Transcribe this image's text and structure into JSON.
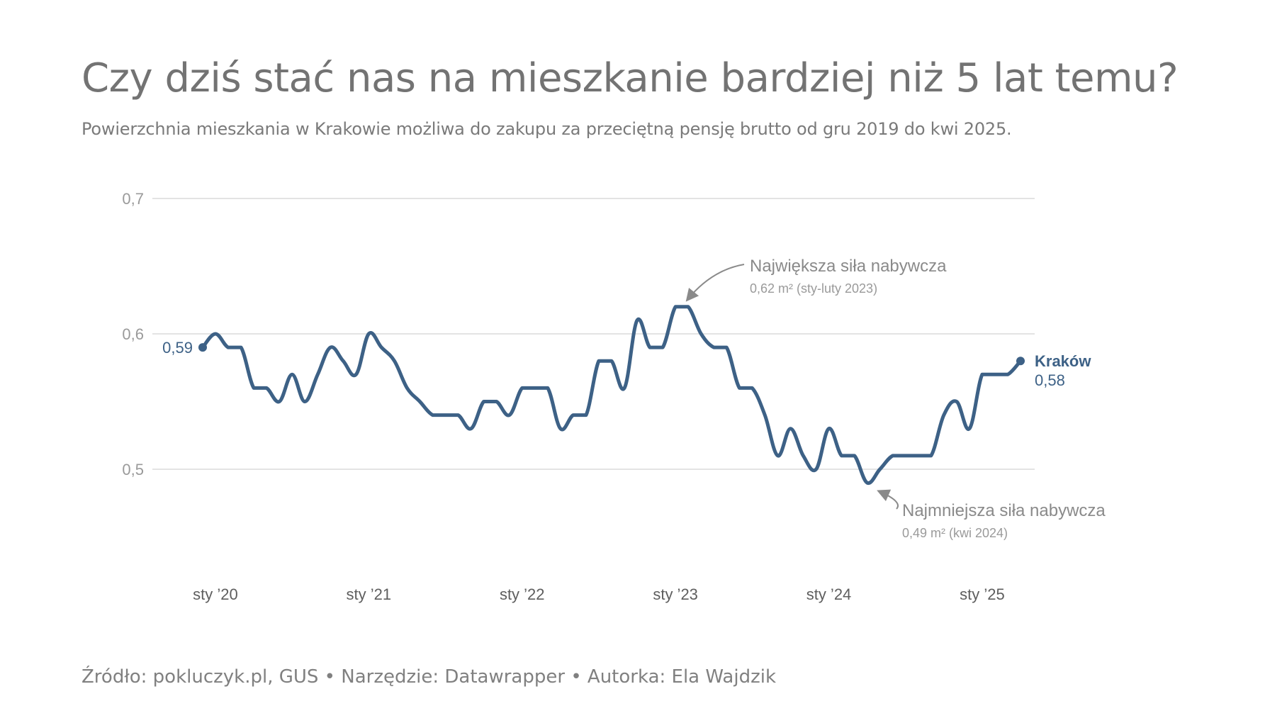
{
  "title": "Czy dziś stać nas na mieszkanie bardziej niż 5 lat temu?",
  "subtitle": "Powierzchnia mieszkania w Krakowie możliwa do zakupu za przeciętną pensję brutto od gru 2019 do kwi 2025.",
  "footer": "Źródło: pokluczyk.pl, GUS • Narzędzie: Datawrapper • Autorka: Ela Wajdzik",
  "colors": {
    "line": "#3d6186",
    "grid": "#e3e3e3",
    "annotation": "#8a8a8a"
  },
  "chart_data": {
    "type": "line",
    "title": "Czy dziś stać nas na mieszkanie bardziej niż 5 lat temu?",
    "xlabel": "",
    "ylabel": "",
    "ylim": [
      0.45,
      0.7
    ],
    "yticks": [
      0.5,
      0.6,
      0.7
    ],
    "ytick_labels": [
      "0,5",
      "0,6",
      "0,7"
    ],
    "xticks": [
      2020.0,
      2021.0,
      2022.0,
      2023.0,
      2024.0,
      2025.0
    ],
    "xtick_labels": [
      "sty ’20",
      "sty ’21",
      "sty ’22",
      "sty ’23",
      "sty ’24",
      "sty ’25"
    ],
    "grid": true,
    "series": [
      {
        "name": "Kraków",
        "x": [
          2019.917,
          2020.0,
          2020.083,
          2020.167,
          2020.25,
          2020.333,
          2020.417,
          2020.5,
          2020.583,
          2020.667,
          2020.75,
          2020.833,
          2020.917,
          2021.0,
          2021.083,
          2021.167,
          2021.25,
          2021.333,
          2021.417,
          2021.5,
          2021.583,
          2021.667,
          2021.75,
          2021.833,
          2021.917,
          2022.0,
          2022.083,
          2022.167,
          2022.25,
          2022.333,
          2022.417,
          2022.5,
          2022.583,
          2022.667,
          2022.75,
          2022.833,
          2022.917,
          2023.0,
          2023.083,
          2023.167,
          2023.25,
          2023.333,
          2023.417,
          2023.5,
          2023.583,
          2023.667,
          2023.75,
          2023.833,
          2023.917,
          2024.0,
          2024.083,
          2024.167,
          2024.25,
          2024.333,
          2024.417,
          2024.5,
          2024.583,
          2024.667,
          2024.75,
          2024.833,
          2024.917,
          2025.0,
          2025.083,
          2025.167,
          2025.25
        ],
        "values": [
          0.59,
          0.6,
          0.59,
          0.59,
          0.56,
          0.56,
          0.55,
          0.57,
          0.55,
          0.57,
          0.59,
          0.58,
          0.57,
          0.6,
          0.59,
          0.58,
          0.56,
          0.55,
          0.54,
          0.54,
          0.54,
          0.53,
          0.55,
          0.55,
          0.54,
          0.56,
          0.56,
          0.56,
          0.53,
          0.54,
          0.54,
          0.58,
          0.58,
          0.56,
          0.61,
          0.59,
          0.59,
          0.62,
          0.62,
          0.6,
          0.59,
          0.59,
          0.56,
          0.56,
          0.54,
          0.51,
          0.53,
          0.51,
          0.5,
          0.53,
          0.51,
          0.51,
          0.49,
          0.5,
          0.51,
          0.51,
          0.51,
          0.51,
          0.54,
          0.55,
          0.53,
          0.57,
          0.57,
          0.57,
          0.58
        ]
      }
    ],
    "labels": {
      "start_value": "0,59",
      "end_name": "Kraków",
      "end_value": "0,58"
    },
    "annotations": [
      {
        "title": "Największa siła nabywcza",
        "text": "0,62 m² (sty-luty 2023)",
        "target_x": 2023.05,
        "target_y": 0.62
      },
      {
        "title": "Najmniejsza siła nabywcza",
        "text": "0,49 m² (kwi 2024)",
        "target_x": 2024.3,
        "target_y": 0.49
      }
    ]
  }
}
